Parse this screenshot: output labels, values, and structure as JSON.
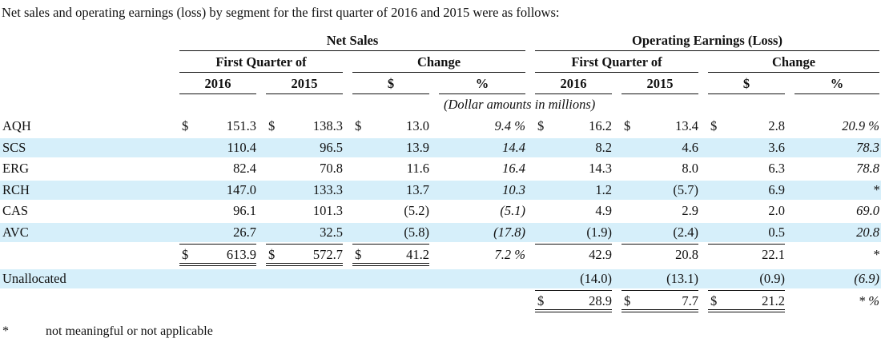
{
  "intro": "Net sales and operating earnings (loss) by segment for the first quarter of 2016 and 2015 were as follows:",
  "headers": {
    "net_sales": "Net Sales",
    "operating": "Operating Earnings (Loss)",
    "first_quarter_ns": "First Quarter of",
    "change_ns": "Change",
    "first_quarter_oe": "First Quarter of",
    "change_oe": "Change",
    "y2016_ns": "2016",
    "y2015_ns": "2015",
    "dollar_ns": "$",
    "pct_ns": "%",
    "y2016_oe": "2016",
    "y2015_oe": "2015",
    "dollar_oe": "$",
    "pct_oe": "%",
    "units": "(Dollar amounts in millions)"
  },
  "rows": [
    {
      "label": "AQH",
      "ns2016": "151.3",
      "ns2015": "138.3",
      "nsChg": "13.0",
      "nsPct": "9.4 %",
      "oe2016": "16.2",
      "oe2015": "13.4",
      "oeChg": "2.8",
      "oePct": "20.9 %",
      "highlight": false,
      "dollars": true
    },
    {
      "label": "SCS",
      "ns2016": "110.4",
      "ns2015": "96.5",
      "nsChg": "13.9",
      "nsPct": "14.4",
      "oe2016": "8.2",
      "oe2015": "4.6",
      "oeChg": "3.6",
      "oePct": "78.3",
      "highlight": true,
      "dollars": false
    },
    {
      "label": "ERG",
      "ns2016": "82.4",
      "ns2015": "70.8",
      "nsChg": "11.6",
      "nsPct": "16.4",
      "oe2016": "14.3",
      "oe2015": "8.0",
      "oeChg": "6.3",
      "oePct": "78.8",
      "highlight": false,
      "dollars": false
    },
    {
      "label": "RCH",
      "ns2016": "147.0",
      "ns2015": "133.3",
      "nsChg": "13.7",
      "nsPct": "10.3",
      "oe2016": "1.2",
      "oe2015": "(5.7)",
      "oeChg": "6.9",
      "oePct": "*",
      "highlight": true,
      "dollars": false
    },
    {
      "label": "CAS",
      "ns2016": "96.1",
      "ns2015": "101.3",
      "nsChg": "(5.2)",
      "nsPct": "(5.1)",
      "oe2016": "4.9",
      "oe2015": "2.9",
      "oeChg": "2.0",
      "oePct": "69.0",
      "highlight": false,
      "dollars": false
    },
    {
      "label": "AVC",
      "ns2016": "26.7",
      "ns2015": "32.5",
      "nsChg": "(5.8)",
      "nsPct": "(17.8)",
      "oe2016": "(1.9)",
      "oe2015": "(2.4)",
      "oeChg": "0.5",
      "oePct": "20.8",
      "highlight": true,
      "dollars": false
    }
  ],
  "subtotal": {
    "ns2016": "613.9",
    "ns2015": "572.7",
    "nsChg": "41.2",
    "nsPct": "7.2 %",
    "oe2016": "42.9",
    "oe2015": "20.8",
    "oeChg": "22.1",
    "oePct": "*"
  },
  "unallocated": {
    "label": "Unallocated",
    "oe2016": "(14.0)",
    "oe2015": "(13.1)",
    "oeChg": "(0.9)",
    "oePct": "(6.9)"
  },
  "total": {
    "oe2016": "28.9",
    "oe2015": "7.7",
    "oeChg": "21.2",
    "oePct": "* %"
  },
  "currency_symbol": "$",
  "footnote": {
    "marker": "*",
    "text": "not meaningful or not applicable"
  },
  "colors": {
    "highlight_band": "#d6effa"
  }
}
